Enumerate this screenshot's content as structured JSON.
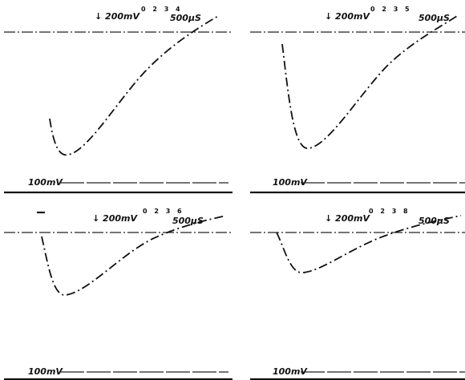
{
  "panels": [
    {
      "scale_label": "↓ 200mV",
      "marker_digits": "0 2 3 4",
      "time_label": "500µS",
      "bottom_label": "100mV"
    },
    {
      "scale_label": "↓ 200mV",
      "marker_digits": "0 2 3 5",
      "time_label": "500µS",
      "bottom_label": "100mV"
    },
    {
      "scale_label": "↓ 200mV",
      "marker_digits": "0 2 3 6",
      "time_label": "500µS",
      "bottom_label": "100mV"
    },
    {
      "scale_label": "↓ 200mV",
      "marker_digits": "0 2 3 8",
      "time_label": "500µS",
      "bottom_label": "100mV"
    }
  ]
}
